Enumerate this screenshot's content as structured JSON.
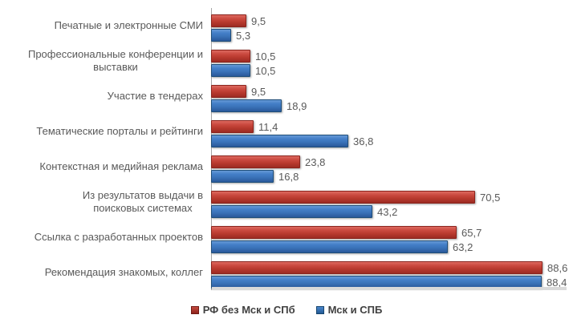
{
  "chart_data": {
    "type": "bar",
    "orientation": "horizontal",
    "title": "",
    "xlabel": "",
    "ylabel": "",
    "categories": [
      "Печатные и электронные СМИ",
      "Профессиональные конференции и\nвыставки",
      "Участие в тендерах",
      "Тематические порталы и рейтинги",
      "Контекстная и медийная реклама",
      "Из результатов выдачи в\nпоисковых системах",
      "Ссылка с разработанных проектов",
      "Рекомендация знакомых, коллег"
    ],
    "series": [
      {
        "name": "РФ без Мск и СПб",
        "color": "#c0392b",
        "values": [
          9.5,
          10.5,
          9.5,
          11.4,
          23.8,
          70.5,
          65.7,
          88.6
        ],
        "labels": [
          "9,5",
          "10,5",
          "9,5",
          "11,4",
          "23,8",
          "70,5",
          "65,7",
          "88,6"
        ]
      },
      {
        "name": "Мск и СПБ",
        "color": "#2e75b6",
        "values": [
          5.3,
          10.5,
          18.9,
          36.8,
          16.8,
          43.2,
          63.2,
          88.4
        ],
        "labels": [
          "5,3",
          "10,5",
          "18,9",
          "36,8",
          "16,8",
          "43,2",
          "63,2",
          "88,4"
        ]
      }
    ],
    "xlim": [
      0,
      96.8
    ],
    "grid": false,
    "value_labels_shown": true,
    "decimal_separator": ",",
    "legend_position": "bottom"
  }
}
